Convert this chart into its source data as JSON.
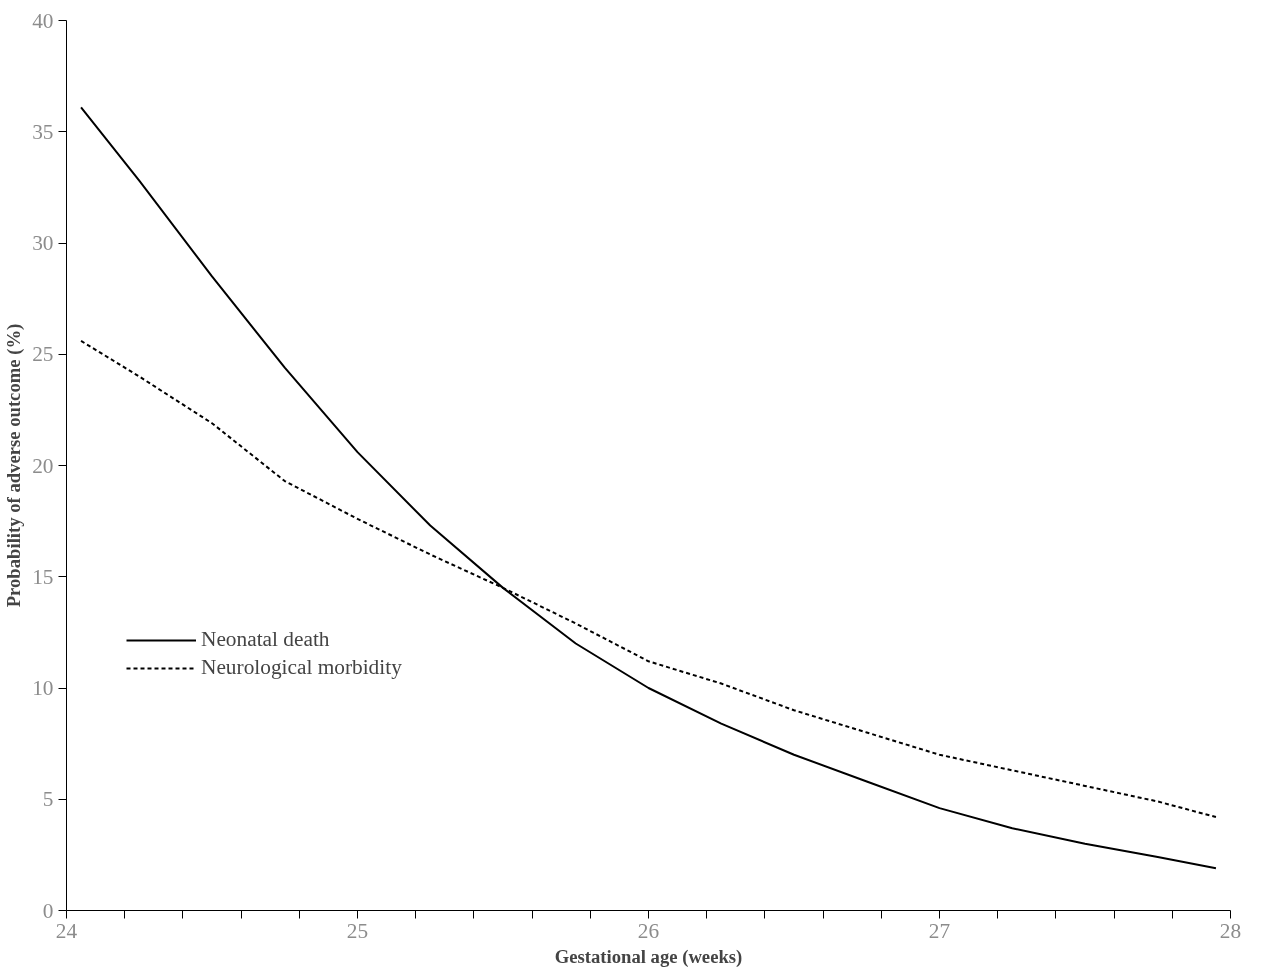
{
  "chart_data": {
    "type": "line",
    "xlabel": "Gestational age (weeks)",
    "ylabel": "Probability of adverse outcome (%)",
    "xlim": [
      24,
      28
    ],
    "ylim": [
      0,
      40
    ],
    "xticks": [
      24,
      {
        "value": 24.2,
        "label": null
      },
      {
        "value": 24.4,
        "label": null
      },
      {
        "value": 24.6,
        "label": null
      },
      {
        "value": 24.8,
        "label": null
      },
      25,
      {
        "value": 25.2,
        "label": null
      },
      {
        "value": 25.4,
        "label": null
      },
      {
        "value": 25.6,
        "label": null
      },
      {
        "value": 25.8,
        "label": null
      },
      26,
      {
        "value": 26.2,
        "label": null
      },
      {
        "value": 26.4,
        "label": null
      },
      {
        "value": 26.6,
        "label": null
      },
      {
        "value": 26.8,
        "label": null
      },
      27,
      {
        "value": 27.2,
        "label": null
      },
      {
        "value": 27.4,
        "label": null
      },
      {
        "value": 27.6,
        "label": null
      },
      {
        "value": 27.8,
        "label": null
      },
      28
    ],
    "yticks": [
      0,
      5,
      10,
      15,
      20,
      25,
      30,
      35,
      40
    ],
    "x": [
      24.05,
      24.25,
      24.5,
      24.75,
      25,
      25.25,
      25.5,
      25.75,
      26,
      26.25,
      26.5,
      26.75,
      27,
      27.25,
      27.5,
      27.75,
      27.95
    ],
    "series": [
      {
        "name": "Neonatal death",
        "color": "#000000",
        "line_style": "solid",
        "values": [
          36.1,
          32.8,
          28.5,
          24.4,
          20.6,
          17.3,
          14.5,
          12.0,
          10.0,
          8.4,
          7.0,
          5.8,
          4.6,
          3.7,
          3.0,
          2.4,
          1.9
        ]
      },
      {
        "name": "Neurological morbidity",
        "color": "#000000",
        "line_style": "dotted",
        "values": [
          25.6,
          24.0,
          21.9,
          19.3,
          17.6,
          16.0,
          14.5,
          12.9,
          11.2,
          10.2,
          9.0,
          8.0,
          7.0,
          6.3,
          5.6,
          4.9,
          4.2
        ]
      }
    ],
    "grid": false,
    "legend": "left",
    "marker": "none"
  }
}
